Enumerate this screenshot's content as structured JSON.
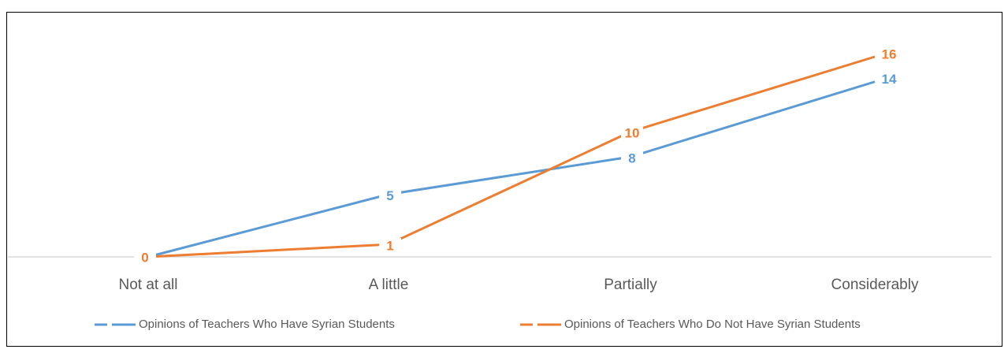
{
  "chart_data": {
    "type": "line",
    "categories": [
      "Not at all",
      "A little",
      "Partially",
      "Considerably"
    ],
    "series": [
      {
        "name": "Opinions of Teachers Who Have Syrian Students",
        "color": "#5b9bd5",
        "values": [
          0,
          5,
          8,
          14
        ]
      },
      {
        "name": "Opinions of Teachers Who Do Not Have Syrian Students",
        "color": "#ed7d31",
        "values": [
          0,
          1,
          10,
          16
        ]
      }
    ],
    "ylim": [
      0,
      16
    ]
  }
}
